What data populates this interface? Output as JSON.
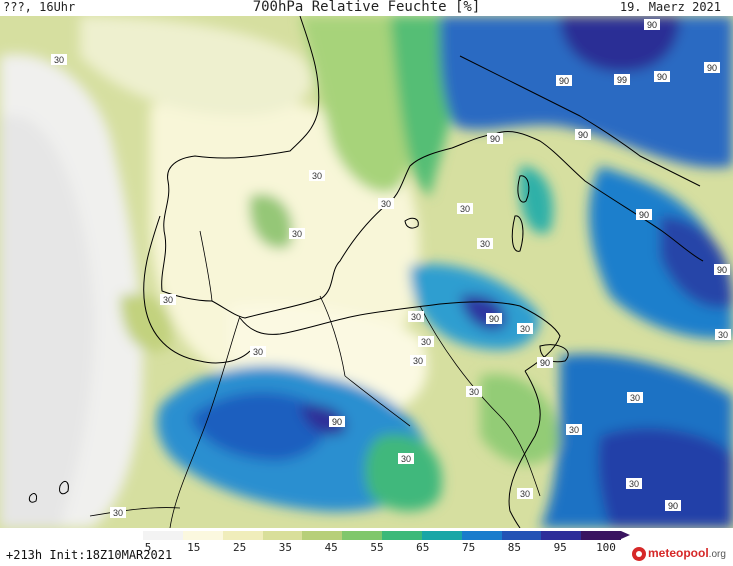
{
  "header": {
    "left": "???, 16Uhr",
    "title": "700hPa Relative Feuchte [%]",
    "date": "19. Maerz 2021"
  },
  "map": {
    "contour_labels": [
      "30",
      "30",
      "30",
      "30",
      "30",
      "30",
      "30",
      "30",
      "30",
      "30",
      "30",
      "30",
      "30",
      "30",
      "30",
      "30",
      "30",
      "30",
      "30",
      "30",
      "90",
      "90",
      "90",
      "99",
      "90",
      "90",
      "90",
      "90",
      "90",
      "90",
      "90",
      "90",
      "90"
    ]
  },
  "colorbar": {
    "ticks": [
      "5",
      "15",
      "25",
      "35",
      "45",
      "55",
      "65",
      "75",
      "85",
      "95",
      "100"
    ],
    "colors": [
      "#f3f3f3",
      "#fbf8df",
      "#f0edbb",
      "#d9df9a",
      "#b7cf79",
      "#80c76c",
      "#3cb979",
      "#19a6a6",
      "#1a7ccc",
      "#2353b5",
      "#2e2e99",
      "#3a1460"
    ]
  },
  "footer": {
    "init": "+213h  Init:18Z10MAR2021",
    "brand": "meteopool",
    "brand_suffix": ".org"
  }
}
